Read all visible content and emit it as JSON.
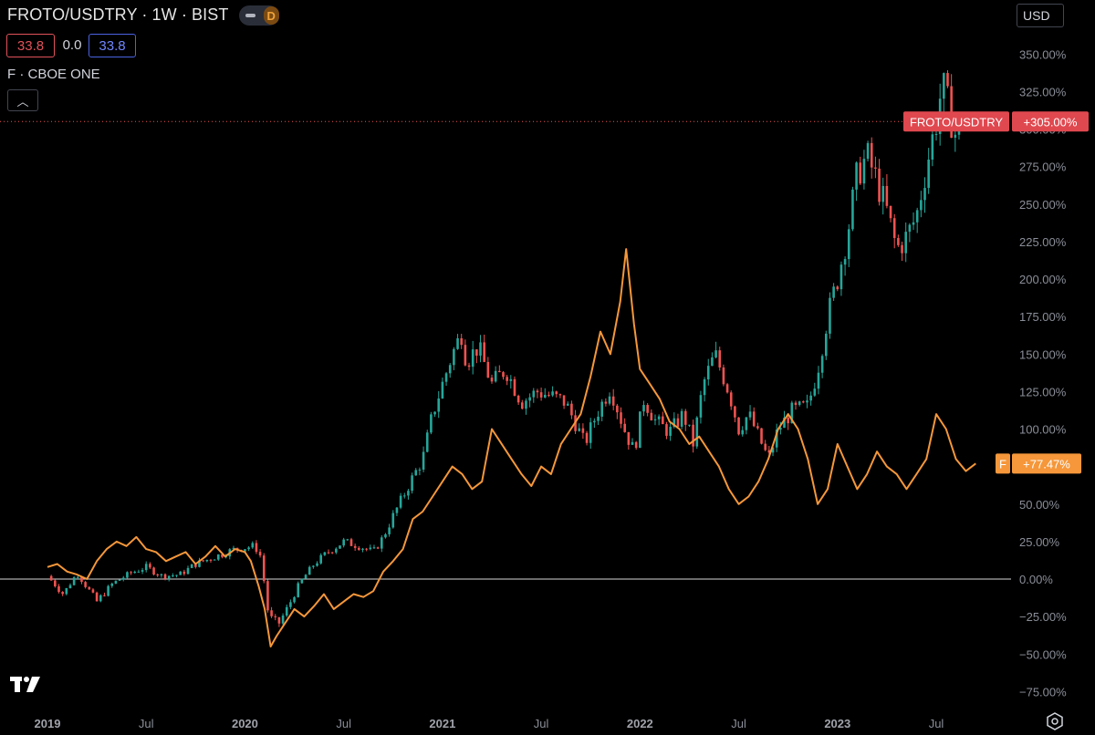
{
  "header": {
    "title": "FROTO/USDTRY · 1W · BIST",
    "toggle_label": "D",
    "bid": "33.8",
    "spread": "0.0",
    "ask": "33.8",
    "indicator": "F · CBOE ONE",
    "collapse_glyph": "︿",
    "currency": "USD"
  },
  "colors": {
    "up": "#26a69a",
    "down": "#ef5350",
    "compare": "#f5973a",
    "background": "#000000"
  },
  "chart_data": {
    "type": "line",
    "title": "",
    "x_tick_labels": [
      "2019",
      "Jul",
      "2020",
      "Jul",
      "2021",
      "Jul",
      "2022",
      "Jul",
      "2023",
      "Jul"
    ],
    "y_tick_labels": [
      "350.00%",
      "325.00%",
      "300.00%",
      "275.00%",
      "250.00%",
      "225.00%",
      "200.00%",
      "175.00%",
      "150.00%",
      "125.00%",
      "100.00%",
      "75.00%",
      "50.00%",
      "25.00%",
      "0.00%",
      "−25.00%",
      "−50.00%",
      "−75.00%"
    ],
    "ylim": [
      -85,
      360
    ],
    "xlim": [
      2018.93,
      2023.93
    ],
    "y_unit": "percent change",
    "baseline": 0,
    "series": [
      {
        "name": "FROTO/USDTRY",
        "style": "candlestick",
        "last_label": "+305.00%",
        "points": [
          [
            2019.0,
            2
          ],
          [
            2019.08,
            -10
          ],
          [
            2019.15,
            4
          ],
          [
            2019.25,
            -15
          ],
          [
            2019.33,
            -3
          ],
          [
            2019.42,
            4
          ],
          [
            2019.5,
            8
          ],
          [
            2019.58,
            2
          ],
          [
            2019.67,
            3
          ],
          [
            2019.75,
            10
          ],
          [
            2019.85,
            15
          ],
          [
            2019.95,
            20
          ],
          [
            2020.05,
            22
          ],
          [
            2020.08,
            15
          ],
          [
            2020.12,
            -25
          ],
          [
            2020.17,
            -30
          ],
          [
            2020.22,
            -18
          ],
          [
            2020.28,
            -2
          ],
          [
            2020.35,
            10
          ],
          [
            2020.42,
            18
          ],
          [
            2020.5,
            25
          ],
          [
            2020.58,
            22
          ],
          [
            2020.65,
            18
          ],
          [
            2020.7,
            28
          ],
          [
            2020.75,
            42
          ],
          [
            2020.8,
            55
          ],
          [
            2020.85,
            68
          ],
          [
            2020.9,
            80
          ],
          [
            2020.95,
            110
          ],
          [
            2021.0,
            130
          ],
          [
            2021.05,
            150
          ],
          [
            2021.1,
            165
          ],
          [
            2021.12,
            145
          ],
          [
            2021.18,
            155
          ],
          [
            2021.25,
            130
          ],
          [
            2021.32,
            140
          ],
          [
            2021.4,
            118
          ],
          [
            2021.48,
            125
          ],
          [
            2021.55,
            122
          ],
          [
            2021.62,
            118
          ],
          [
            2021.67,
            105
          ],
          [
            2021.72,
            90
          ],
          [
            2021.78,
            110
          ],
          [
            2021.85,
            128
          ],
          [
            2021.92,
            100
          ],
          [
            2021.97,
            85
          ],
          [
            2022.02,
            120
          ],
          [
            2022.08,
            105
          ],
          [
            2022.15,
            98
          ],
          [
            2022.22,
            110
          ],
          [
            2022.27,
            90
          ],
          [
            2022.32,
            130
          ],
          [
            2022.38,
            150
          ],
          [
            2022.45,
            125
          ],
          [
            2022.5,
            100
          ],
          [
            2022.55,
            110
          ],
          [
            2022.6,
            95
          ],
          [
            2022.65,
            80
          ],
          [
            2022.7,
            100
          ],
          [
            2022.77,
            112
          ],
          [
            2022.85,
            115
          ],
          [
            2022.9,
            140
          ],
          [
            2022.95,
            175
          ],
          [
            2023.0,
            200
          ],
          [
            2023.05,
            230
          ],
          [
            2023.1,
            270
          ],
          [
            2023.15,
            282
          ],
          [
            2023.2,
            265
          ],
          [
            2023.25,
            245
          ],
          [
            2023.3,
            220
          ],
          [
            2023.35,
            228
          ],
          [
            2023.4,
            242
          ],
          [
            2023.45,
            275
          ],
          [
            2023.5,
            305
          ],
          [
            2023.53,
            330
          ],
          [
            2023.57,
            310
          ],
          [
            2023.6,
            295
          ],
          [
            2023.63,
            305
          ]
        ]
      },
      {
        "name": "F",
        "style": "line",
        "last_label": "+77.47%",
        "points": [
          [
            2019.0,
            8
          ],
          [
            2019.05,
            10
          ],
          [
            2019.1,
            5
          ],
          [
            2019.15,
            3
          ],
          [
            2019.2,
            0
          ],
          [
            2019.25,
            12
          ],
          [
            2019.3,
            20
          ],
          [
            2019.35,
            25
          ],
          [
            2019.4,
            22
          ],
          [
            2019.45,
            28
          ],
          [
            2019.5,
            20
          ],
          [
            2019.55,
            18
          ],
          [
            2019.6,
            12
          ],
          [
            2019.65,
            15
          ],
          [
            2019.7,
            18
          ],
          [
            2019.75,
            10
          ],
          [
            2019.8,
            15
          ],
          [
            2019.85,
            22
          ],
          [
            2019.9,
            15
          ],
          [
            2019.95,
            20
          ],
          [
            2020.0,
            18
          ],
          [
            2020.03,
            12
          ],
          [
            2020.07,
            -5
          ],
          [
            2020.1,
            -20
          ],
          [
            2020.13,
            -45
          ],
          [
            2020.16,
            -38
          ],
          [
            2020.2,
            -30
          ],
          [
            2020.25,
            -20
          ],
          [
            2020.3,
            -25
          ],
          [
            2020.35,
            -18
          ],
          [
            2020.4,
            -10
          ],
          [
            2020.45,
            -20
          ],
          [
            2020.5,
            -15
          ],
          [
            2020.55,
            -10
          ],
          [
            2020.6,
            -12
          ],
          [
            2020.65,
            -8
          ],
          [
            2020.7,
            5
          ],
          [
            2020.75,
            12
          ],
          [
            2020.8,
            20
          ],
          [
            2020.85,
            40
          ],
          [
            2020.9,
            45
          ],
          [
            2020.95,
            55
          ],
          [
            2021.0,
            65
          ],
          [
            2021.05,
            75
          ],
          [
            2021.1,
            70
          ],
          [
            2021.15,
            60
          ],
          [
            2021.2,
            65
          ],
          [
            2021.25,
            100
          ],
          [
            2021.3,
            90
          ],
          [
            2021.35,
            80
          ],
          [
            2021.4,
            70
          ],
          [
            2021.45,
            62
          ],
          [
            2021.5,
            75
          ],
          [
            2021.55,
            70
          ],
          [
            2021.6,
            90
          ],
          [
            2021.65,
            100
          ],
          [
            2021.7,
            110
          ],
          [
            2021.75,
            135
          ],
          [
            2021.8,
            165
          ],
          [
            2021.85,
            150
          ],
          [
            2021.9,
            185
          ],
          [
            2021.93,
            220
          ],
          [
            2021.97,
            170
          ],
          [
            2022.0,
            140
          ],
          [
            2022.05,
            130
          ],
          [
            2022.1,
            120
          ],
          [
            2022.15,
            105
          ],
          [
            2022.2,
            100
          ],
          [
            2022.25,
            90
          ],
          [
            2022.3,
            95
          ],
          [
            2022.35,
            85
          ],
          [
            2022.4,
            75
          ],
          [
            2022.45,
            60
          ],
          [
            2022.5,
            50
          ],
          [
            2022.55,
            55
          ],
          [
            2022.6,
            65
          ],
          [
            2022.65,
            80
          ],
          [
            2022.7,
            100
          ],
          [
            2022.75,
            110
          ],
          [
            2022.8,
            100
          ],
          [
            2022.85,
            80
          ],
          [
            2022.9,
            50
          ],
          [
            2022.95,
            60
          ],
          [
            2023.0,
            90
          ],
          [
            2023.05,
            75
          ],
          [
            2023.1,
            60
          ],
          [
            2023.15,
            70
          ],
          [
            2023.2,
            85
          ],
          [
            2023.25,
            75
          ],
          [
            2023.3,
            70
          ],
          [
            2023.35,
            60
          ],
          [
            2023.4,
            70
          ],
          [
            2023.45,
            80
          ],
          [
            2023.5,
            110
          ],
          [
            2023.55,
            100
          ],
          [
            2023.6,
            80
          ],
          [
            2023.65,
            72
          ],
          [
            2023.7,
            77
          ]
        ]
      }
    ],
    "grid": false,
    "legend": "labels-on-right-axis"
  }
}
